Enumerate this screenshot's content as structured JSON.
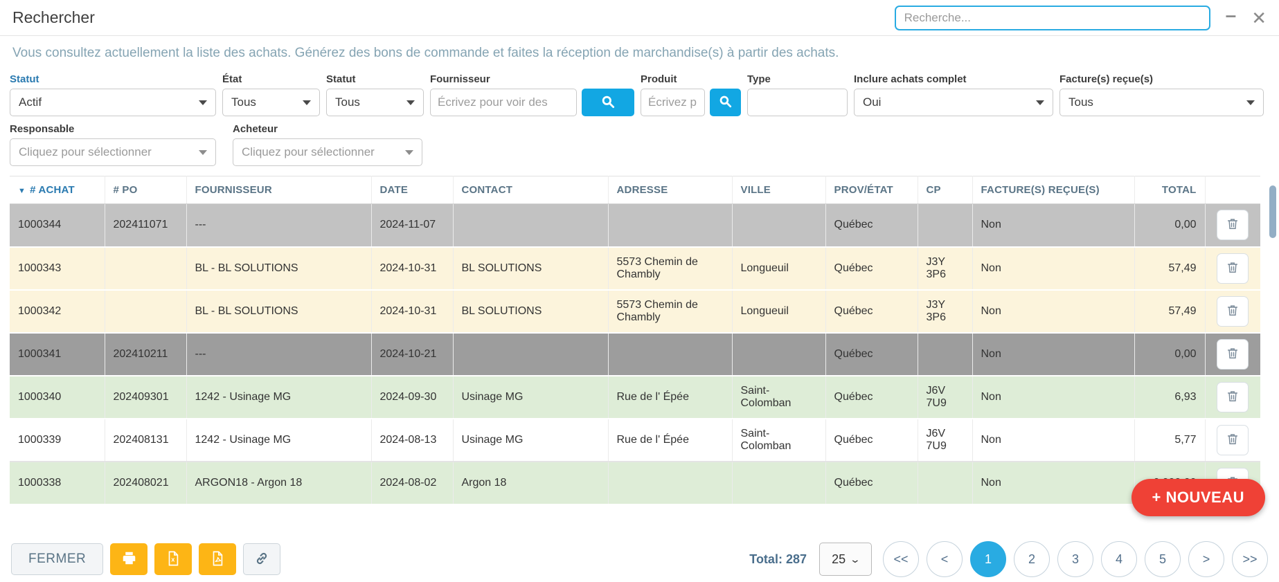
{
  "titlebar": {
    "title": "Rechercher",
    "search_placeholder": "Recherche...",
    "minimize_glyph": "–",
    "close_glyph": "✕"
  },
  "subtitle": "Vous consultez actuellement la liste des achats. Générez des bons de commande et faites la réception de marchandise(s) à partir des achats.",
  "filters": {
    "statut1": {
      "label": "Statut",
      "value": "Actif"
    },
    "etat": {
      "label": "État",
      "value": "Tous"
    },
    "statut2": {
      "label": "Statut",
      "value": "Tous"
    },
    "fournisseur": {
      "label": "Fournisseur",
      "placeholder": "Écrivez pour voir des"
    },
    "produit": {
      "label": "Produit",
      "placeholder": "Écrivez p"
    },
    "type": {
      "label": "Type",
      "value": ""
    },
    "inclure_achats_complet": {
      "label": "Inclure achats complet",
      "value": "Oui"
    },
    "factures_recues": {
      "label": "Facture(s) reçue(s)",
      "value": "Tous"
    },
    "responsable": {
      "label": "Responsable",
      "placeholder": "Cliquez pour sélectionner"
    },
    "acheteur": {
      "label": "Acheteur",
      "placeholder": "Cliquez pour sélectionner"
    }
  },
  "table": {
    "columns": [
      {
        "key": "achat",
        "label": "# ACHAT"
      },
      {
        "key": "po",
        "label": "# PO"
      },
      {
        "key": "fournisseur",
        "label": "FOURNISSEUR"
      },
      {
        "key": "date",
        "label": "DATE"
      },
      {
        "key": "contact",
        "label": "CONTACT"
      },
      {
        "key": "adresse",
        "label": "ADRESSE"
      },
      {
        "key": "ville",
        "label": "VILLE"
      },
      {
        "key": "prov_etat",
        "label": "PROV/ÉTAT"
      },
      {
        "key": "cp",
        "label": "CP"
      },
      {
        "key": "factures_recues",
        "label": "FACTURE(S) REÇUE(S)"
      },
      {
        "key": "total",
        "label": "TOTAL"
      }
    ],
    "rows": [
      {
        "achat": "1000344",
        "po": "202411071",
        "fournisseur": "---",
        "date": "2024-11-07",
        "contact": "",
        "adresse": "",
        "ville": "",
        "prov_etat": "Québec",
        "cp": "",
        "factures_recues": "Non",
        "total": "0,00",
        "bg": "gray"
      },
      {
        "achat": "1000343",
        "po": "",
        "fournisseur": "BL - BL SOLUTIONS",
        "date": "2024-10-31",
        "contact": "BL SOLUTIONS",
        "adresse": "5573 Chemin de Chambly",
        "ville": "Longueuil",
        "prov_etat": "Québec",
        "cp": "J3Y 3P6",
        "factures_recues": "Non",
        "total": "57,49",
        "bg": "cream"
      },
      {
        "achat": "1000342",
        "po": "",
        "fournisseur": "BL - BL SOLUTIONS",
        "date": "2024-10-31",
        "contact": "BL SOLUTIONS",
        "adresse": "5573 Chemin de Chambly",
        "ville": "Longueuil",
        "prov_etat": "Québec",
        "cp": "J3Y 3P6",
        "factures_recues": "Non",
        "total": "57,49",
        "bg": "cream"
      },
      {
        "achat": "1000341",
        "po": "202410211",
        "fournisseur": "---",
        "date": "2024-10-21",
        "contact": "",
        "adresse": "",
        "ville": "",
        "prov_etat": "Québec",
        "cp": "",
        "factures_recues": "Non",
        "total": "0,00",
        "bg": "darkgray"
      },
      {
        "achat": "1000340",
        "po": "202409301",
        "fournisseur": "1242 - Usinage MG",
        "date": "2024-09-30",
        "contact": "Usinage MG",
        "adresse": "Rue de l' Épée",
        "ville": "Saint-Colomban",
        "prov_etat": "Québec",
        "cp": "J6V 7U9",
        "factures_recues": "Non",
        "total": "6,93",
        "bg": "green"
      },
      {
        "achat": "1000339",
        "po": "202408131",
        "fournisseur": "1242 - Usinage MG",
        "date": "2024-08-13",
        "contact": "Usinage MG",
        "adresse": "Rue de l' Épée",
        "ville": "Saint-Colomban",
        "prov_etat": "Québec",
        "cp": "J6V 7U9",
        "factures_recues": "Non",
        "total": "5,77",
        "bg": "white"
      },
      {
        "achat": "1000338",
        "po": "202408021",
        "fournisseur": "ARGON18 - Argon 18",
        "date": "2024-08-02",
        "contact": "Argon 18",
        "adresse": "",
        "ville": "",
        "prov_etat": "Québec",
        "cp": "",
        "factures_recues": "Non",
        "total": "6 000,00",
        "bg": "green"
      }
    ]
  },
  "new_button_label": "+ NOUVEAU",
  "footer": {
    "fermer_label": "FERMER",
    "total_label": "Total:",
    "total_value": "287",
    "page_size": "25",
    "pagination": {
      "items": [
        "<<",
        "<",
        "1",
        "2",
        "3",
        "4",
        "5",
        ">",
        ">>"
      ],
      "active": "1"
    }
  },
  "icons": [
    "search-icon",
    "minimize-icon",
    "close-icon",
    "sort-desc-icon",
    "dropdown-caret-icon",
    "trash-icon",
    "printer-icon",
    "excel-file-icon",
    "pdf-file-icon",
    "link-icon"
  ],
  "colors": {
    "accent_blue": "#29ABE2",
    "search_button_blue": "#12A7E3",
    "button_yellow": "#FDB515",
    "button_red": "#EF4136",
    "row_gray": "#C2C2C2",
    "row_dark_gray": "#9D9D9D",
    "row_cream": "#FCF4DC",
    "row_green": "#DEEDD7",
    "header_text": "#5A7486",
    "link_blue": "#2A7AB0",
    "subtitle_text": "#85A4B3"
  }
}
